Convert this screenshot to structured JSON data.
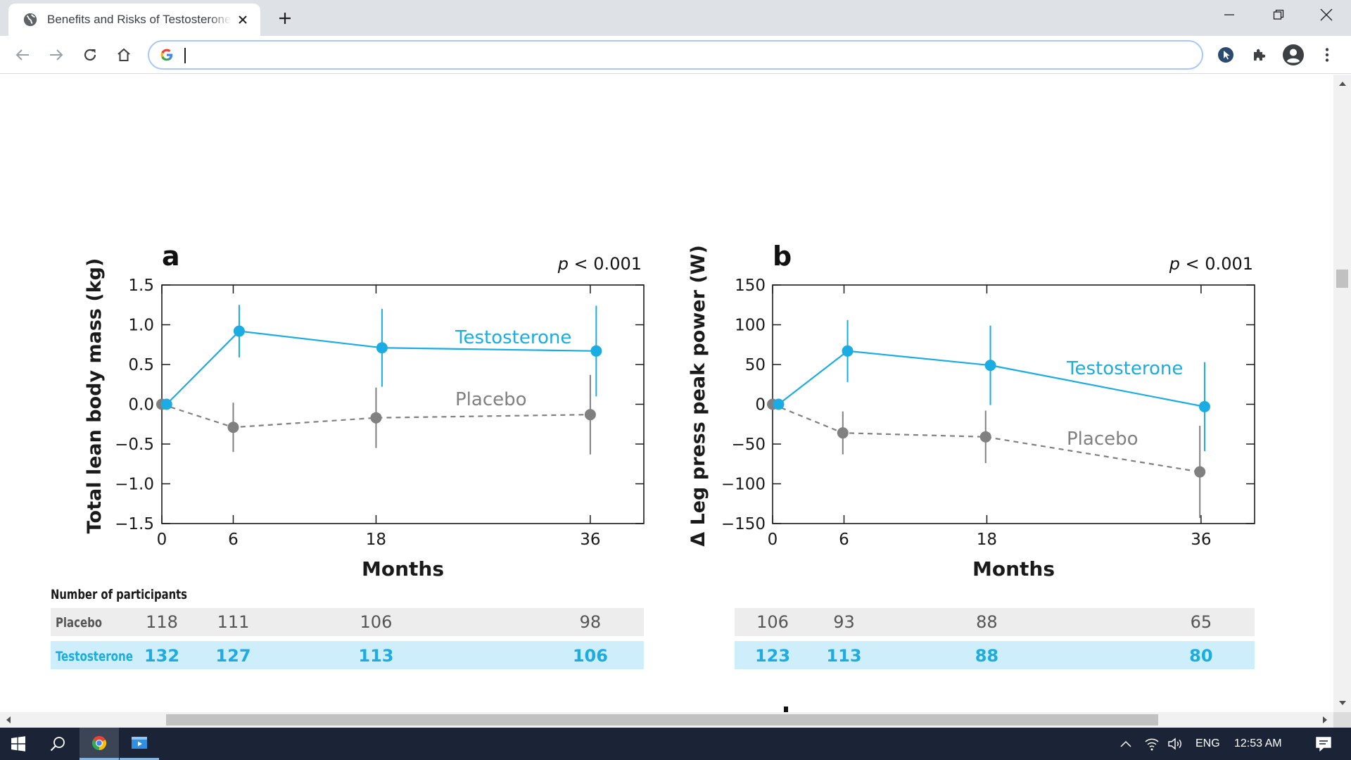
{
  "browser": {
    "tab_title": "Benefits and Risks of Testosterone Treatment",
    "omnibox_value": "",
    "icons": {
      "favicon": "globe-icon",
      "tab_close": "close-icon",
      "new_tab": "plus-icon",
      "minimize": "minimize-icon",
      "restore": "restore-icon",
      "close": "close-icon",
      "back": "arrow-left-icon",
      "forward": "arrow-right-icon",
      "reload": "reload-icon",
      "home": "home-icon",
      "extension_1": "cursor-extension-icon",
      "extension_2": "puzzle-icon",
      "profile": "profile-icon",
      "menu": "kebab-menu-icon"
    }
  },
  "chart_data": [
    {
      "type": "line",
      "panel_label": "a",
      "p_value_italic": "p",
      "p_value_rest": " < 0.001",
      "xlabel": "Months",
      "ylabel": "Total lean body mass (kg)",
      "ylim": [
        -1.5,
        1.5
      ],
      "xlim": [
        0,
        40.5
      ],
      "x_ticks": [
        0,
        6,
        18,
        36
      ],
      "x_tick_labels": [
        "0",
        "6",
        "18",
        "36"
      ],
      "y_ticks": [
        1.5,
        1.0,
        0.5,
        0.0,
        -0.5,
        -1.0,
        -1.5
      ],
      "y_tick_labels": [
        "1.5",
        "1.0",
        "0.5",
        "0.0",
        "−0.5",
        "−1.0",
        "−1.5"
      ],
      "series": [
        {
          "name": "Testosterone",
          "color": "#1aace3",
          "x": [
            0.4,
            6.5,
            18.5,
            36.5
          ],
          "y": [
            0.0,
            0.92,
            0.71,
            0.67
          ],
          "err": [
            0.0,
            0.33,
            0.49,
            0.57
          ]
        },
        {
          "name": "Placebo",
          "color": "#808080",
          "dashed": true,
          "x": [
            0.0,
            6.0,
            18.0,
            36.0
          ],
          "y": [
            0.0,
            -0.29,
            -0.17,
            -0.13
          ],
          "err": [
            0.0,
            0.31,
            0.38,
            0.5
          ]
        }
      ]
    },
    {
      "type": "line",
      "panel_label": "b",
      "p_value_italic": "p",
      "p_value_rest": " < 0.001",
      "xlabel": "Months",
      "ylabel": "Δ Leg press peak power (W)",
      "ylim": [
        -150,
        150
      ],
      "xlim": [
        0,
        40.5
      ],
      "x_ticks": [
        0,
        6,
        18,
        36
      ],
      "x_tick_labels": [
        "0",
        "6",
        "18",
        "36"
      ],
      "y_ticks": [
        150,
        100,
        50,
        0,
        -50,
        -100,
        -150
      ],
      "y_tick_labels": [
        "150",
        "100",
        "50",
        "0",
        "−50",
        "−100",
        "−150"
      ],
      "series": [
        {
          "name": "Testosterone",
          "color": "#1aace3",
          "x": [
            0.5,
            6.3,
            18.3,
            36.3
          ],
          "y": [
            0,
            67,
            49,
            -3
          ],
          "err": [
            0,
            39,
            50,
            56
          ]
        },
        {
          "name": "Placebo",
          "color": "#808080",
          "dashed": true,
          "x": [
            0.0,
            5.9,
            17.9,
            35.9
          ],
          "y": [
            0,
            -36,
            -41,
            -85
          ],
          "err": [
            0,
            27,
            33,
            58
          ]
        }
      ]
    }
  ],
  "participants": {
    "title": "Number of participants",
    "placebo_label": "Placebo",
    "testosterone_label": "Testosterone",
    "a": {
      "placebo": [
        "118",
        "111",
        "106",
        "98"
      ],
      "testosterone": [
        "132",
        "127",
        "113",
        "106"
      ]
    },
    "b": {
      "placebo": [
        "106",
        "93",
        "88",
        "65"
      ],
      "testosterone": [
        "123",
        "113",
        "88",
        "80"
      ]
    }
  },
  "taskbar": {
    "language": "ENG",
    "time": "12:53 AM",
    "icons": {
      "start": "windows-start-icon",
      "search": "search-icon",
      "chrome": "chrome-icon",
      "app": "media-app-icon",
      "tray_up": "chevron-up-icon",
      "network": "wifi-icon",
      "volume": "speaker-icon",
      "notifications": "notification-icon"
    }
  }
}
